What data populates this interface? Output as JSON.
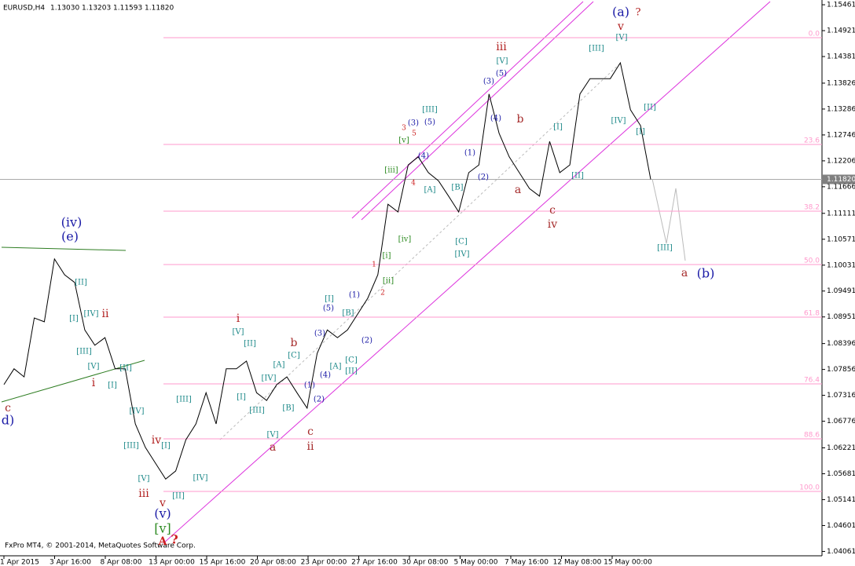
{
  "chart_data": {
    "type": "line",
    "header": {
      "symbol": "EURUSD,H4",
      "ohlc": [
        "1.13030",
        "1.13203",
        "1.11593",
        "1.11820"
      ]
    },
    "footer": "FxPro MT4, © 2001-2014, MetaQuotes Software Corp.",
    "color": "#000000",
    "values": [
      1.0754,
      1.0787,
      1.077,
      1.0893,
      1.0885,
      1.1016,
      1.0983,
      1.0967,
      1.0868,
      1.0836,
      1.0852,
      1.0787,
      1.0787,
      1.0672,
      1.0623,
      1.059,
      1.0557,
      1.0574,
      1.0639,
      1.0672,
      1.0737,
      1.0672,
      1.0787,
      1.0787,
      1.0803,
      1.0737,
      1.0721,
      1.0754,
      1.077,
      1.0737,
      1.0705,
      1.0819,
      1.0868,
      1.0852,
      1.0868,
      1.0901,
      1.0934,
      1.0983,
      1.113,
      1.1114,
      1.1212,
      1.1229,
      1.1196,
      1.1179,
      1.1147,
      1.1114,
      1.1196,
      1.1212,
      1.136,
      1.1278,
      1.1229,
      1.1196,
      1.1163,
      1.1147,
      1.1261,
      1.1196,
      1.1212,
      1.136,
      1.1392,
      1.1392,
      1.1392,
      1.1425,
      1.1327,
      1.1294,
      1.1182
    ],
    "x_labels": [
      "1 Apr 2015",
      "3 Apr 16:00",
      "8 Apr 08:00",
      "13 Apr 00:00",
      "15 Apr 16:00",
      "20 Apr 08:00",
      "23 Apr 00:00",
      "27 Apr 16:00",
      "30 Apr 08:00",
      "5 May 00:00",
      "7 May 16:00",
      "12 May 08:00",
      "15 May 00:00"
    ],
    "ylim": [
      1.0397,
      1.1556
    ],
    "yticks": [
      1.15461,
      1.14921,
      1.14381,
      1.13826,
      1.13286,
      1.12746,
      1.12206,
      1.11666,
      1.11111,
      1.10571,
      1.10031,
      1.09491,
      1.08951,
      1.08396,
      1.07856,
      1.07316,
      1.06776,
      1.06221,
      1.05681,
      1.05141,
      1.04601,
      1.04061
    ],
    "current_price": {
      "value": 1.1182,
      "label": "1.11820"
    },
    "fib_color": "#ff99cc",
    "fib_levels": [
      {
        "value": 1.14774,
        "label": "0.0"
      },
      {
        "value": 1.12548,
        "label": "23.6"
      },
      {
        "value": 1.11157,
        "label": "38.2"
      },
      {
        "value": 1.10044,
        "label": "50.0"
      },
      {
        "value": 1.08947,
        "label": "61.8"
      },
      {
        "value": 1.07556,
        "label": "76.4"
      },
      {
        "value": 1.0641,
        "label": "88.6"
      },
      {
        "value": 1.05313,
        "label": "100.0"
      }
    ],
    "annotations": [
      {
        "text": "(a)",
        "color": "#1a1aa6"
      },
      {
        "text": "?",
        "color": "#b22222"
      },
      {
        "text": "v",
        "color": "#b22222"
      },
      {
        "text": "[V]",
        "color": "#1f8a8a"
      },
      {
        "text": "[III]",
        "color": "#1f8a8a"
      },
      {
        "text": "iii",
        "color": "#b22222"
      },
      {
        "text": "[V]",
        "color": "#1f8a8a"
      },
      {
        "text": "(5)",
        "color": "#1a1aa6"
      },
      {
        "text": "(3)",
        "color": "#1a1aa6"
      },
      {
        "text": "(4)",
        "color": "#1a1aa6"
      },
      {
        "text": "b",
        "color": "#a52a2a"
      },
      {
        "text": "[I]",
        "color": "#1f8a8a"
      },
      {
        "text": "[IV]",
        "color": "#1f8a8a"
      },
      {
        "text": "[II]",
        "color": "#1f8a8a"
      },
      {
        "text": "[I]",
        "color": "#1f8a8a"
      },
      {
        "text": "(1)",
        "color": "#1a1aa6"
      },
      {
        "text": "(2)",
        "color": "#1a1aa6"
      },
      {
        "text": "[II]",
        "color": "#1f8a8a"
      },
      {
        "text": "a",
        "color": "#a52a2a"
      },
      {
        "text": "c",
        "color": "#a52a2a"
      },
      {
        "text": "iv",
        "color": "#a52a2a"
      },
      {
        "text": "[III]",
        "color": "#1f8a8a"
      },
      {
        "text": "a",
        "color": "#a52a2a"
      },
      {
        "text": "(b)",
        "color": "#1a1aa6"
      },
      {
        "text": "[III]",
        "color": "#1f8a8a"
      },
      {
        "text": "(3)",
        "color": "#1a1aa6"
      },
      {
        "text": "(5)",
        "color": "#1a1aa6"
      },
      {
        "text": "3",
        "color": "#cc2222"
      },
      {
        "text": "5",
        "color": "#cc2222"
      },
      {
        "text": "[v]",
        "color": "#2e8b22"
      },
      {
        "text": "(4)",
        "color": "#1a1aa6"
      },
      {
        "text": "4",
        "color": "#cc2222"
      },
      {
        "text": "[A]",
        "color": "#1f8a8a"
      },
      {
        "text": "[B]",
        "color": "#1f8a8a"
      },
      {
        "text": "[iii]",
        "color": "#2e8b22"
      },
      {
        "text": "[C]",
        "color": "#1f8a8a"
      },
      {
        "text": "[IV]",
        "color": "#1f8a8a"
      },
      {
        "text": "[iv]",
        "color": "#2e8b22"
      },
      {
        "text": "[i]",
        "color": "#2e8b22"
      },
      {
        "text": "1",
        "color": "#cc2222"
      },
      {
        "text": "[ii]",
        "color": "#2e8b22"
      },
      {
        "text": "2",
        "color": "#cc2222"
      },
      {
        "text": "(1)",
        "color": "#1a1aa6"
      },
      {
        "text": "[I]",
        "color": "#1f8a8a"
      },
      {
        "text": "(5)",
        "color": "#1a1aa6"
      },
      {
        "text": "[B]",
        "color": "#1f8a8a"
      },
      {
        "text": "i",
        "color": "#b22222"
      },
      {
        "text": "[V]",
        "color": "#1f8a8a"
      },
      {
        "text": "(3)",
        "color": "#1a1aa6"
      },
      {
        "text": "[II]",
        "color": "#1f8a8a"
      },
      {
        "text": "b",
        "color": "#a52a2a"
      },
      {
        "text": "(2)",
        "color": "#1a1aa6"
      },
      {
        "text": "[C]",
        "color": "#1f8a8a"
      },
      {
        "text": "[C]",
        "color": "#1f8a8a"
      },
      {
        "text": "[A]",
        "color": "#1f8a8a"
      },
      {
        "text": "[A]",
        "color": "#1f8a8a"
      },
      {
        "text": "[II]",
        "color": "#1f8a8a"
      },
      {
        "text": "(4)",
        "color": "#1a1aa6"
      },
      {
        "text": "[IV]",
        "color": "#1f8a8a"
      },
      {
        "text": "(1)",
        "color": "#1a1aa6"
      },
      {
        "text": "[I]",
        "color": "#1f8a8a"
      },
      {
        "text": "[B]",
        "color": "#1f8a8a"
      },
      {
        "text": "[III]",
        "color": "#1f8a8a"
      },
      {
        "text": "(2)",
        "color": "#1a1aa6"
      },
      {
        "text": "c",
        "color": "#a52a2a"
      },
      {
        "text": "ii",
        "color": "#a52a2a"
      },
      {
        "text": "[V]",
        "color": "#1f8a8a"
      },
      {
        "text": "a",
        "color": "#a52a2a"
      },
      {
        "text": "[III]",
        "color": "#1f8a8a"
      },
      {
        "text": "[IV]",
        "color": "#1f8a8a"
      },
      {
        "text": "[II]",
        "color": "#1f8a8a"
      },
      {
        "text": "iv",
        "color": "#b22222"
      },
      {
        "text": "[I]",
        "color": "#1f8a8a"
      },
      {
        "text": "[V]",
        "color": "#1f8a8a"
      },
      {
        "text": "iii",
        "color": "#b22222"
      },
      {
        "text": "v",
        "color": "#b22222"
      },
      {
        "text": "(v)",
        "color": "#1a1aa6"
      },
      {
        "text": "[v]",
        "color": "#2e8b22"
      },
      {
        "text": "A",
        "color": "#cc2222"
      },
      {
        "text": "?",
        "color": "#cc2222"
      },
      {
        "text": "[IV]",
        "color": "#1f8a8a"
      },
      {
        "text": "[III]",
        "color": "#1f8a8a"
      },
      {
        "text": "(iv)",
        "color": "#1a1aa6"
      },
      {
        "text": "(e)",
        "color": "#1a1aa6"
      },
      {
        "text": "[II]",
        "color": "#1f8a8a"
      },
      {
        "text": "[I]",
        "color": "#1f8a8a"
      },
      {
        "text": "[IV]",
        "color": "#1f8a8a"
      },
      {
        "text": "ii",
        "color": "#b22222"
      },
      {
        "text": "[III]",
        "color": "#1f8a8a"
      },
      {
        "text": "[V]",
        "color": "#1f8a8a"
      },
      {
        "text": "[II]",
        "color": "#1f8a8a"
      },
      {
        "text": "[I]",
        "color": "#1f8a8a"
      },
      {
        "text": "i",
        "color": "#b22222"
      },
      {
        "text": "c",
        "color": "#a52a2a"
      },
      {
        "text": "d)",
        "color": "#1a1aa6"
      }
    ]
  }
}
